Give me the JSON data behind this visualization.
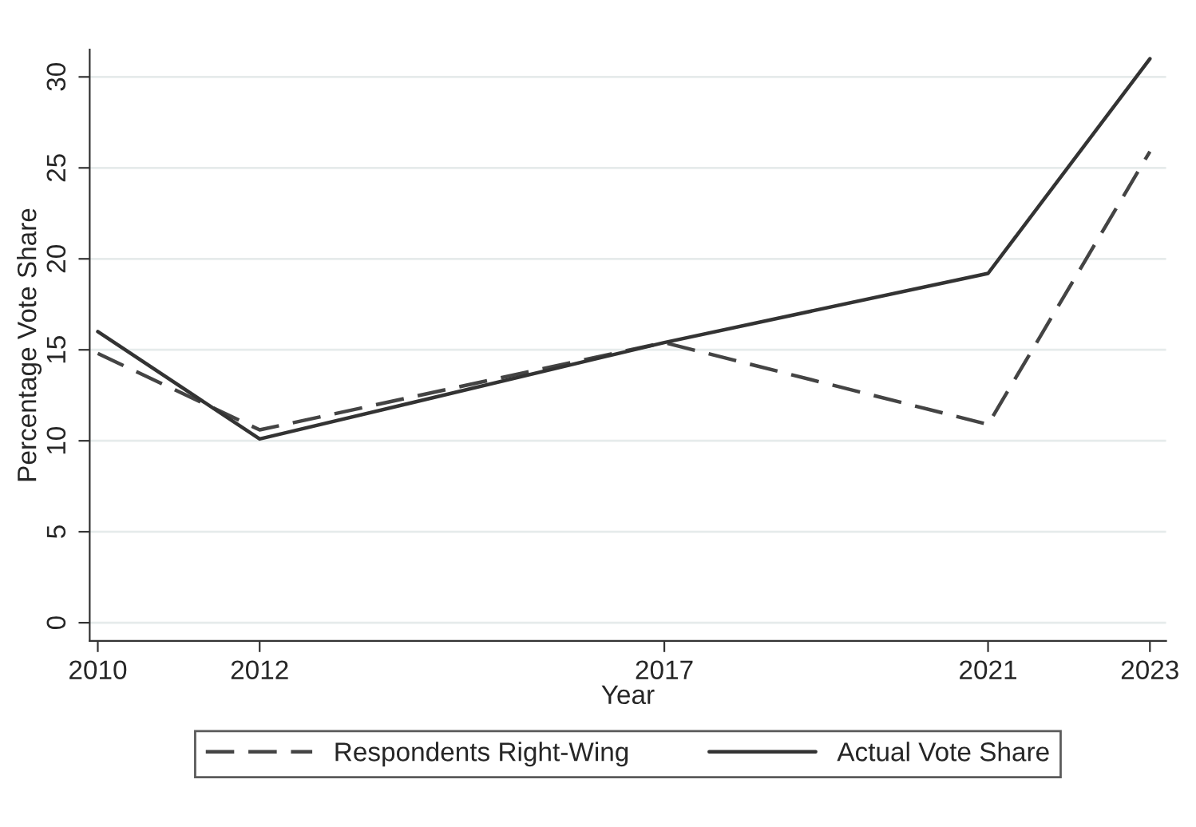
{
  "chart_data": {
    "type": "line",
    "xlabel": "Year",
    "ylabel": "Percentage Vote Share",
    "x": [
      2010,
      2012,
      2017,
      2021,
      2023
    ],
    "series": [
      {
        "name": "Respondents Right-Wing",
        "color": "#444444",
        "line_style": "dashed",
        "values": [
          14.8,
          10.6,
          15.4,
          10.9,
          25.9
        ]
      },
      {
        "name": "Actual Vote Share",
        "color": "#333333",
        "line_style": "solid",
        "values": [
          16.0,
          10.1,
          15.4,
          19.2,
          31.0
        ]
      }
    ],
    "xlim": [
      2009.9,
      2023.2
    ],
    "xticks": [
      2010,
      2012,
      2017,
      2021,
      2023
    ],
    "ylim": [
      -1,
      31.5
    ],
    "yticks": [
      0,
      5,
      10,
      15,
      20,
      25,
      30
    ],
    "grid": "y",
    "legend": "bottom",
    "marker": "none"
  }
}
